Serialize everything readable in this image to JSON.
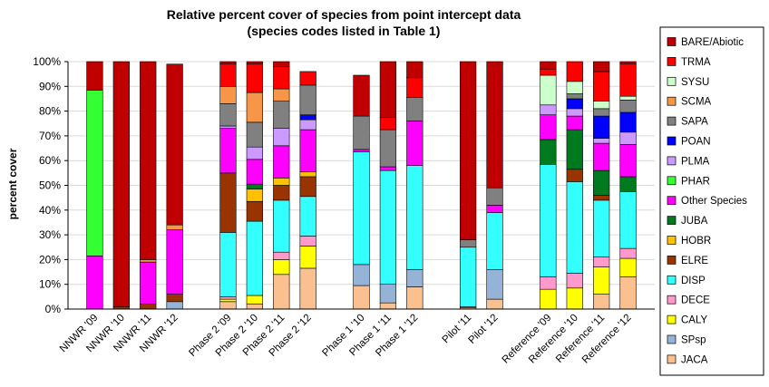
{
  "chart_data": {
    "type": "bar",
    "stacked": true,
    "title": "Relative percent cover of species from point intercept data",
    "subtitle": "(species codes listed in Table 1)",
    "ylabel": "percent cover",
    "ylim": [
      0,
      100
    ],
    "yticks": [
      "0%",
      "10%",
      "20%",
      "30%",
      "40%",
      "50%",
      "60%",
      "70%",
      "80%",
      "90%",
      "100%"
    ],
    "categories": [
      "NNWR '09",
      "NNWR '10",
      "NNWR '11",
      "NNWR '12",
      "Phase 2 '09",
      "Phase 2 '10",
      "Phase 2 '11",
      "Phase 2 '12",
      "Phase 1 '10",
      "Phase 1 '11",
      "Phase 1 '12",
      "Pilot '11",
      "Pilot '12",
      "Reference '09",
      "Reference '10",
      "Reference '11",
      "Reference '12"
    ],
    "groups": [
      4,
      4,
      3,
      2,
      4
    ],
    "legend_position": "right",
    "series": [
      {
        "name": "JACA",
        "color": "#FAC090",
        "values": [
          0,
          0,
          0,
          0,
          3,
          2,
          14,
          16.5,
          9.5,
          2.5,
          9,
          0.5,
          4,
          0,
          0,
          6,
          13
        ]
      },
      {
        "name": "SPsp",
        "color": "#95B3D7",
        "values": [
          0,
          0,
          0,
          3,
          0,
          0,
          0,
          0,
          8.5,
          7.5,
          7,
          0.5,
          12,
          0,
          0,
          0,
          0
        ]
      },
      {
        "name": "CALY",
        "color": "#FFFF00",
        "values": [
          0,
          0,
          0,
          0,
          1,
          3.5,
          6,
          9,
          0,
          0,
          0,
          0,
          0,
          8,
          8.5,
          11,
          7.5
        ]
      },
      {
        "name": "DECE",
        "color": "#FF99CC",
        "values": [
          0,
          0,
          0,
          0,
          1,
          0,
          3,
          4,
          0,
          0,
          0,
          0,
          0,
          5,
          6,
          4,
          4
        ]
      },
      {
        "name": "DISP",
        "color": "#33FFFF",
        "values": [
          0,
          0,
          0,
          0,
          26,
          30,
          21,
          16,
          45.5,
          46,
          42,
          24,
          23,
          45.5,
          37,
          23,
          23
        ]
      },
      {
        "name": "ELRE",
        "color": "#993300",
        "values": [
          0,
          1,
          2,
          3,
          24,
          8,
          6,
          8,
          0,
          0,
          0,
          0,
          0,
          0,
          5,
          2,
          0
        ]
      },
      {
        "name": "HOBR",
        "color": "#FFC000",
        "values": [
          0,
          0,
          0,
          0,
          0,
          5,
          3,
          2,
          0,
          0,
          0,
          0,
          0,
          0,
          0,
          0,
          0
        ]
      },
      {
        "name": "JUBA",
        "color": "#007A1E",
        "values": [
          0,
          0,
          0,
          0,
          0,
          2,
          0,
          0,
          0,
          0,
          0,
          0,
          0,
          10,
          16,
          10,
          6
        ]
      },
      {
        "name": "Other Species",
        "color": "#FF00FF",
        "values": [
          21.5,
          0,
          17,
          26,
          18,
          10,
          13,
          17,
          1,
          1.5,
          18,
          0,
          3,
          10,
          5.5,
          11,
          13
        ]
      },
      {
        "name": "PHAR",
        "color": "#33FF33",
        "values": [
          67,
          0,
          0,
          0,
          0,
          0,
          0,
          0,
          0,
          0,
          0,
          0,
          0,
          0,
          0,
          0,
          0
        ]
      },
      {
        "name": "PLMA",
        "color": "#CC99FF",
        "values": [
          0,
          0,
          0,
          0,
          1,
          5,
          7,
          4,
          0,
          0,
          0,
          0,
          0,
          4,
          3,
          2,
          5
        ]
      },
      {
        "name": "POAN",
        "color": "#0000FF",
        "values": [
          0,
          0,
          0,
          0,
          0,
          0,
          0,
          2,
          0,
          0,
          0,
          0,
          0,
          0,
          4,
          9,
          8
        ]
      },
      {
        "name": "SAPA",
        "color": "#808080",
        "values": [
          0,
          0,
          0,
          0,
          9,
          10,
          11,
          12,
          13.5,
          15,
          9.5,
          3,
          7,
          0,
          2,
          3,
          5
        ]
      },
      {
        "name": "SCMA",
        "color": "#F79646",
        "values": [
          0,
          0,
          1,
          2,
          7,
          12,
          5,
          0,
          0,
          0,
          0,
          0,
          0,
          0,
          0,
          0,
          0
        ]
      },
      {
        "name": "SYSU",
        "color": "#CCFFCC",
        "values": [
          0,
          0,
          0,
          0,
          0,
          0,
          0,
          0,
          0,
          0,
          0,
          0,
          0,
          12,
          5,
          3,
          1.5
        ]
      },
      {
        "name": "TRMA",
        "color": "#FF0000",
        "values": [
          0,
          0,
          0,
          0,
          9,
          11.5,
          9,
          5.5,
          0,
          5,
          8,
          0,
          0,
          2.5,
          8,
          12,
          13
        ]
      },
      {
        "name": "BARE/Abiotic",
        "color": "#C00000",
        "values": [
          11.5,
          99,
          80,
          65,
          1,
          1,
          2,
          0,
          16.5,
          22.5,
          6.5,
          72,
          51,
          3,
          0,
          4,
          1
        ]
      }
    ]
  }
}
